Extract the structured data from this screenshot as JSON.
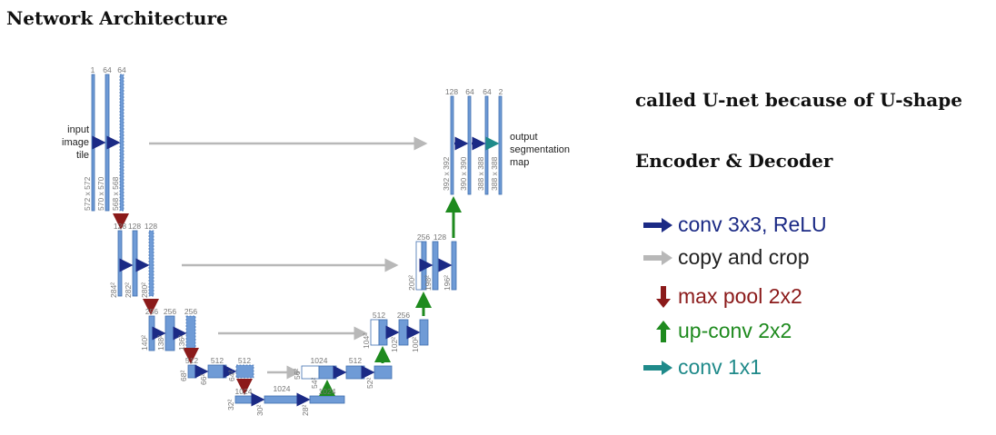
{
  "title": "Network Architecture",
  "notes": [
    "called U-net because of U-shape",
    "Encoder & Decoder"
  ],
  "input_label": [
    "input",
    "image",
    "tile"
  ],
  "output_label": [
    "output",
    "segmentation",
    "map"
  ],
  "legend": [
    {
      "label": "conv 3x3, ReLU",
      "color": "#1b2a85",
      "arrow": "right",
      "icon": "navy-right-arrow-icon"
    },
    {
      "label": "copy and crop",
      "color": "#222222",
      "arrow_color": "#b8b8b8",
      "arrow": "right",
      "icon": "gray-right-arrow-icon"
    },
    {
      "label": "max pool 2x2",
      "color": "#8b1a1a",
      "arrow": "down",
      "icon": "red-down-arrow-icon"
    },
    {
      "label": "up-conv 2x2",
      "color": "#1e8a1e",
      "arrow": "up",
      "icon": "green-up-arrow-icon"
    },
    {
      "label": "conv 1x1",
      "color": "#1f8a8a",
      "arrow": "right",
      "icon": "teal-right-arrow-icon"
    }
  ],
  "colors": {
    "block": "#6f9bd6",
    "block_stroke": "#3f6fb0",
    "label": "#777777",
    "conv": "#1b2a85",
    "copy": "#b8b8b8",
    "pool": "#8b1a1a",
    "up": "#1e8a1e",
    "final": "#1f8a8a"
  },
  "channel_labels": [
    "1",
    "64",
    "64",
    "128",
    "128",
    "256",
    "256",
    "512",
    "512",
    "1024",
    "1024",
    "512",
    "512",
    "256",
    "256",
    "128",
    "128",
    "64",
    "64",
    "2"
  ],
  "size_labels": [
    "572 x 572",
    "570 x 570",
    "568 x 568",
    "284²",
    "282²",
    "280²",
    "140²",
    "138²",
    "136²",
    "68²",
    "66²",
    "64²",
    "32²",
    "30²",
    "28²",
    "56²",
    "54²",
    "52²",
    "104²",
    "102²",
    "100²",
    "200²",
    "198²",
    "196²",
    "392 x 392",
    "390 x 390",
    "388 x 388",
    "388 x 388"
  ]
}
